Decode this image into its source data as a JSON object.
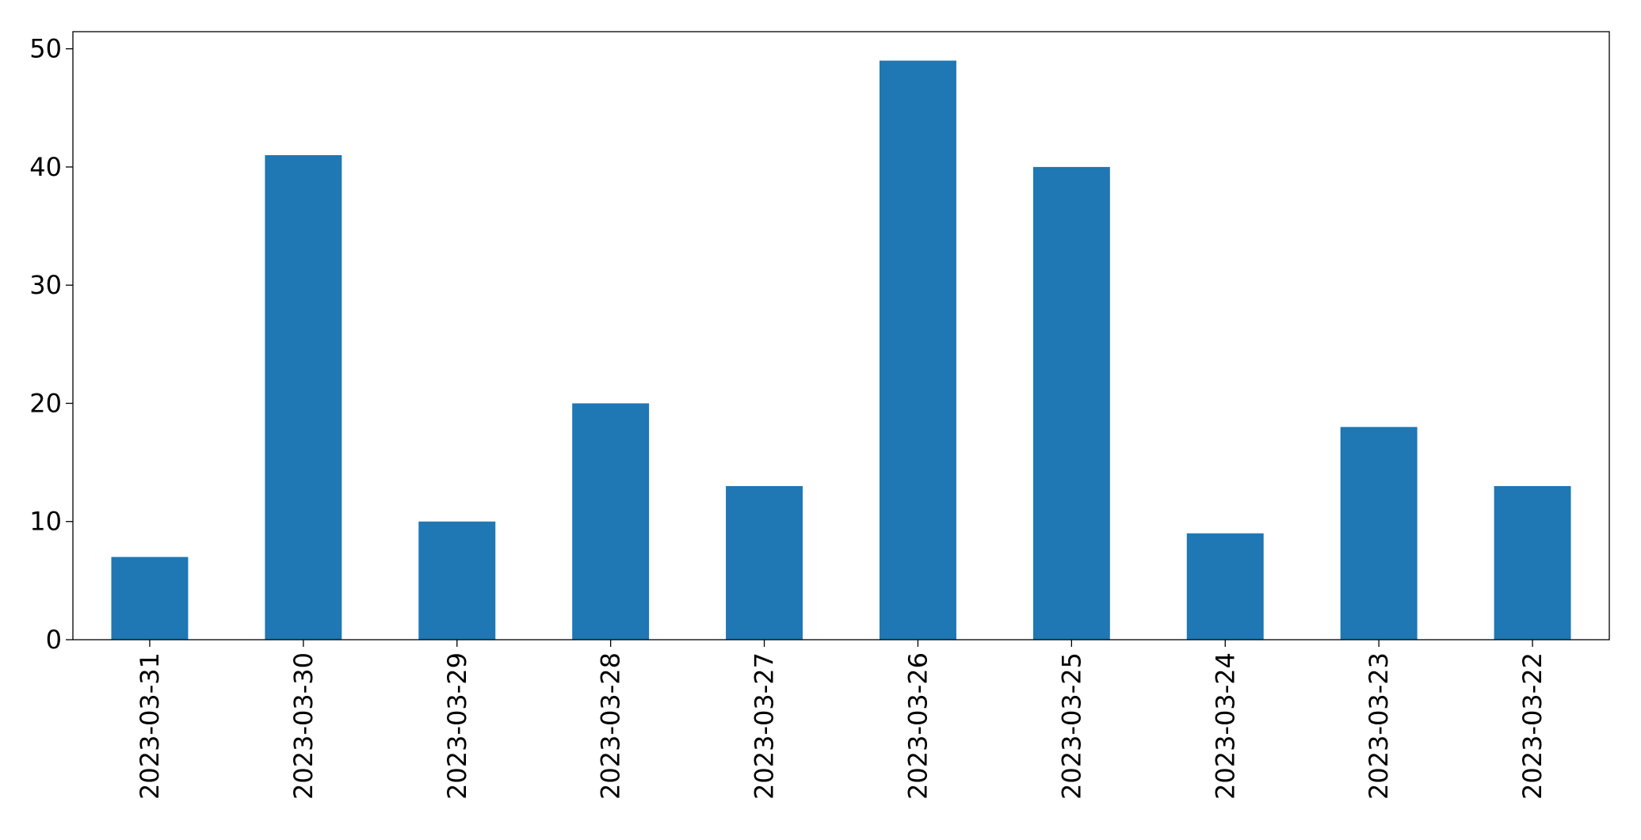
{
  "chart_data": {
    "type": "bar",
    "categories": [
      "2023-03-31",
      "2023-03-30",
      "2023-03-29",
      "2023-03-28",
      "2023-03-27",
      "2023-03-26",
      "2023-03-25",
      "2023-03-24",
      "2023-03-23",
      "2023-03-22"
    ],
    "values": [
      7,
      41,
      10,
      20,
      13,
      49,
      40,
      9,
      18,
      13
    ],
    "color": "#1f77b4",
    "ylim": [
      0,
      51.45
    ],
    "yticks": [
      0,
      10,
      20,
      30,
      40,
      50
    ],
    "grid": false
  }
}
